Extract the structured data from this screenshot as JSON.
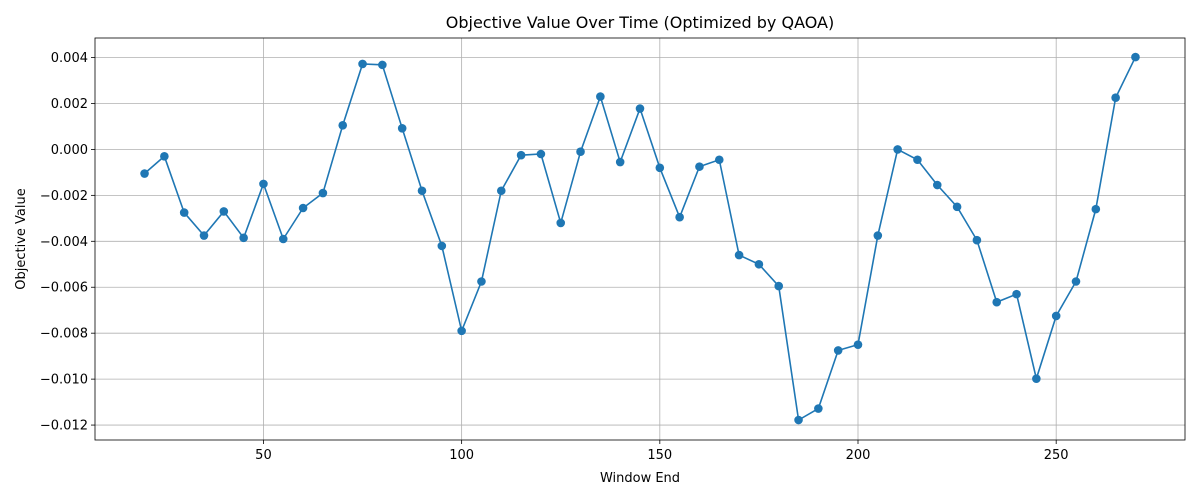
{
  "chart_data": {
    "type": "line",
    "title": "Objective Value Over Time (Optimized by QAOA)",
    "xlabel": "Window End",
    "ylabel": "Objective Value",
    "xlim": [
      7.5,
      282.5
    ],
    "ylim": [
      -0.01265,
      0.00485
    ],
    "xticks": [
      50,
      100,
      150,
      200,
      250
    ],
    "xtick_labels": [
      "50",
      "100",
      "150",
      "200",
      "250"
    ],
    "yticks": [
      0.004,
      0.002,
      0.0,
      -0.002,
      -0.004,
      -0.006,
      -0.008,
      -0.01,
      -0.012
    ],
    "ytick_labels": [
      "0.004",
      "0.002",
      "0.000",
      "−0.002",
      "−0.004",
      "−0.006",
      "−0.008",
      "−0.010",
      "−0.012"
    ],
    "grid": true,
    "marker": "circle",
    "color": "#1f77b4",
    "series": [
      {
        "x": [
          20,
          25,
          30,
          35,
          40,
          45,
          50,
          55,
          60,
          65,
          70,
          75,
          80,
          85,
          90,
          95,
          100,
          105,
          110,
          115,
          120,
          125,
          130,
          135,
          140,
          145,
          150,
          155,
          160,
          165,
          170,
          175,
          180,
          185,
          190,
          195,
          200,
          205,
          210,
          215,
          220,
          225,
          230,
          235,
          240,
          245,
          250,
          255,
          260,
          265,
          270
        ],
        "values": [
          -0.00105,
          -0.0003,
          -0.00275,
          -0.00375,
          -0.0027,
          -0.00385,
          -0.0015,
          -0.0039,
          -0.00255,
          -0.0019,
          0.00105,
          0.00372,
          0.00368,
          0.00092,
          -0.0018,
          -0.0042,
          -0.0079,
          -0.00575,
          -0.0018,
          -0.00025,
          -0.0002,
          -0.0032,
          -0.0001,
          0.0023,
          -0.00055,
          0.00178,
          -0.0008,
          -0.00295,
          -0.00075,
          -0.00045,
          -0.0046,
          -0.005,
          -0.00595,
          -0.01178,
          -0.01128,
          -0.00875,
          -0.0085,
          -0.00375,
          0.0,
          -0.00045,
          -0.00155,
          -0.0025,
          -0.00395,
          -0.00665,
          -0.0063,
          -0.00998,
          -0.00725,
          -0.00575,
          -0.0026,
          0.00225,
          0.00402
        ]
      }
    ]
  }
}
